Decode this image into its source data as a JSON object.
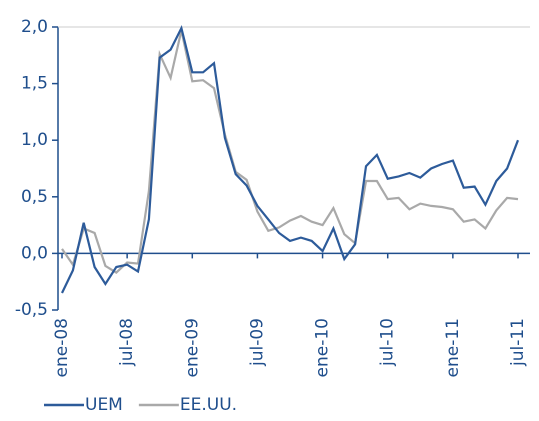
{
  "chart_data": {
    "type": "line",
    "categories": [
      "ene-08",
      null,
      null,
      null,
      null,
      null,
      "jul-08",
      null,
      null,
      null,
      null,
      null,
      "ene-09",
      null,
      null,
      null,
      null,
      null,
      "jul-09",
      null,
      null,
      null,
      null,
      null,
      "ene-10",
      null,
      null,
      null,
      null,
      null,
      "jul-10",
      null,
      null,
      null,
      null,
      null,
      "ene-11",
      null,
      null,
      null,
      null,
      null,
      "jul-11"
    ],
    "series": [
      {
        "name": "UEM",
        "color": "#2d5b9a",
        "values": [
          -0.35,
          -0.15,
          0.27,
          -0.12,
          -0.27,
          -0.12,
          -0.1,
          -0.16,
          0.3,
          1.73,
          1.8,
          1.99,
          1.6,
          1.6,
          1.68,
          1.02,
          0.7,
          0.6,
          0.42,
          0.3,
          0.18,
          0.11,
          0.14,
          0.11,
          0.02,
          0.22,
          -0.05,
          0.08,
          0.77,
          0.87,
          0.66,
          0.68,
          0.71,
          0.67,
          0.75,
          0.79,
          0.82,
          0.58,
          0.59,
          0.43,
          0.64,
          0.75,
          1.0
        ]
      },
      {
        "name": "EE.UU.",
        "color": "#a9a9a9",
        "values": [
          0.04,
          -0.1,
          0.22,
          0.18,
          -0.11,
          -0.17,
          -0.08,
          -0.09,
          0.55,
          1.76,
          1.55,
          1.97,
          1.52,
          1.53,
          1.46,
          1.05,
          0.72,
          0.65,
          0.37,
          0.2,
          0.23,
          0.29,
          0.33,
          0.28,
          0.25,
          0.4,
          0.17,
          0.09,
          0.64,
          0.64,
          0.48,
          0.49,
          0.39,
          0.44,
          0.42,
          0.41,
          0.39,
          0.28,
          0.3,
          0.22,
          0.38,
          0.49,
          0.48
        ]
      }
    ],
    "ylim": [
      -0.5,
      2.0
    ],
    "yticks": [
      {
        "value": -0.5,
        "label": "-0,5"
      },
      {
        "value": 0,
        "label": "0,0"
      },
      {
        "value": 0.5,
        "label": "0,5"
      },
      {
        "value": 1.0,
        "label": "1,0"
      },
      {
        "value": 1.5,
        "label": "1,5"
      },
      {
        "value": 2.0,
        "label": "2,0"
      }
    ]
  }
}
